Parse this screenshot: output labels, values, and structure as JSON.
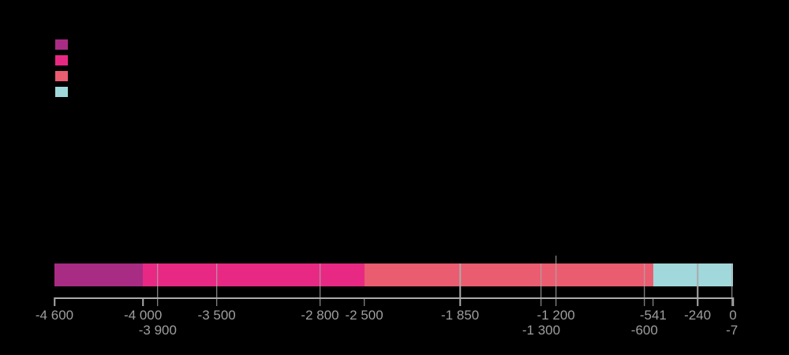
{
  "chart_data": {
    "type": "bar",
    "subtype": "horizontal-stacked-timeline",
    "title": "",
    "axis": {
      "min": -4600,
      "max": 0,
      "orientation": "horizontal"
    },
    "segments": [
      {
        "start": -4600,
        "end": -4000,
        "color": "#a82c83"
      },
      {
        "start": -4000,
        "end": -2500,
        "color": "#e82983"
      },
      {
        "start": -2500,
        "end": -541,
        "color": "#ea5c70"
      },
      {
        "start": -541,
        "end": 0,
        "color": "#a0d8db"
      }
    ],
    "event_markers": [
      {
        "value": -3900,
        "extended": false
      },
      {
        "value": -3500,
        "extended": false
      },
      {
        "value": -2800,
        "extended": false
      },
      {
        "value": -1850,
        "extended": false
      },
      {
        "value": -1300,
        "extended": false
      },
      {
        "value": -1200,
        "extended": true
      },
      {
        "value": -600,
        "extended": false
      },
      {
        "value": -240,
        "extended": false
      },
      {
        "value": -7,
        "extended": false
      }
    ],
    "boundary_ticks": [
      -4600,
      -4000,
      -2500,
      -541,
      0
    ],
    "tick_labels": [
      {
        "value": -4600,
        "label": "-4 600",
        "row": 1
      },
      {
        "value": -4000,
        "label": "-4 000",
        "row": 1
      },
      {
        "value": -3900,
        "label": "-3 900",
        "row": 2
      },
      {
        "value": -3500,
        "label": "-3 500",
        "row": 1
      },
      {
        "value": -2800,
        "label": "-2 800",
        "row": 1
      },
      {
        "value": -2500,
        "label": "-2 500",
        "row": 1
      },
      {
        "value": -1850,
        "label": "-1 850",
        "row": 1
      },
      {
        "value": -1300,
        "label": "-1 300",
        "row": 2
      },
      {
        "value": -1200,
        "label": "-1 200",
        "row": 1
      },
      {
        "value": -600,
        "label": "-600",
        "row": 2
      },
      {
        "value": -541,
        "label": "-541",
        "row": 1
      },
      {
        "value": -240,
        "label": "-240",
        "row": 1
      },
      {
        "value": -7,
        "label": "-7",
        "row": 2
      },
      {
        "value": 0,
        "label": "0",
        "row": 1
      }
    ],
    "legend": {
      "position": "top-left",
      "labels_visible": false,
      "swatch_colors": [
        "#a82c83",
        "#e82983",
        "#ea5c70",
        "#a0d8db"
      ]
    },
    "colors": {
      "axis_line": "#aaaaaa",
      "marker_line": "#aaaaaa",
      "tick_label": "#9e9e9e",
      "background": "#000000"
    },
    "grid": false
  }
}
